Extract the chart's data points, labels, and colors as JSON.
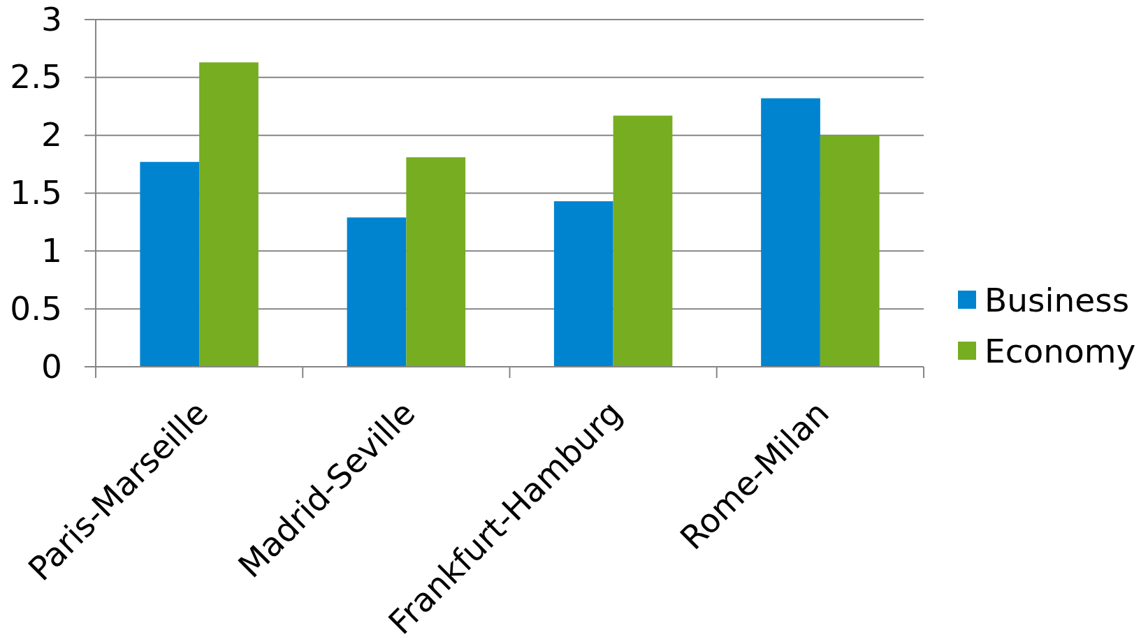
{
  "chart_data": {
    "type": "bar",
    "categories": [
      "Paris-Marseille",
      "Madrid-Seville",
      "Frankfurt-Hamburg",
      "Rome-Milan"
    ],
    "series": [
      {
        "name": "Business",
        "color": "#0084d0",
        "values": [
          1.77,
          1.29,
          1.43,
          2.32
        ]
      },
      {
        "name": "Economy",
        "color": "#76ad21",
        "values": [
          2.63,
          1.81,
          2.17,
          2.0
        ]
      }
    ],
    "ylim": [
      0,
      3
    ],
    "yticks": [
      0,
      0.5,
      1,
      1.5,
      2,
      2.5,
      3
    ],
    "grid": "y",
    "legend": "right"
  }
}
